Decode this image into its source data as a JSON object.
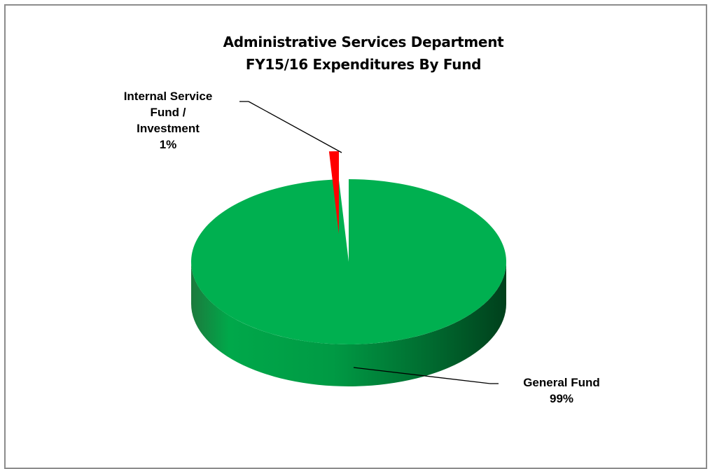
{
  "chart_data": {
    "type": "pie",
    "title": "Administrative Services Department FY15/16 Expenditures By Fund",
    "title_lines": [
      "Administrative Services Department",
      "FY15/16 Expenditures By Fund"
    ],
    "slices": [
      {
        "label": "General Fund",
        "label_lines": [
          "General Fund"
        ],
        "percent_text": "99%",
        "value": 99,
        "color": "#00b050"
      },
      {
        "label": "Internal Service Fund / Investment",
        "label_lines": [
          "Internal Service",
          "Fund /",
          "Investment"
        ],
        "percent_text": "1%",
        "value": 1,
        "color": "#ff0000",
        "exploded": true
      }
    ],
    "style": "3d-pie",
    "legend": "none"
  }
}
